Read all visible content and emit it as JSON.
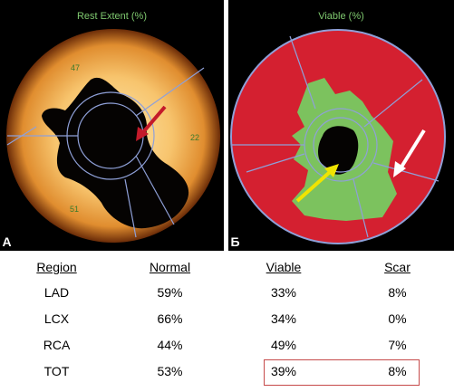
{
  "panel_a": {
    "title": "Rest Extent (%)",
    "letter": "A",
    "segment_labels": {
      "top": "47",
      "right": "22",
      "bottom": "51"
    }
  },
  "panel_b": {
    "title": "Viable (%)",
    "letter": "Б"
  },
  "table": {
    "headers": [
      "Region",
      "Normal",
      "Viable",
      "Scar"
    ],
    "rows": [
      [
        "LAD",
        "59%",
        "33%",
        "8%"
      ],
      [
        "LCX",
        "66%",
        "34%",
        "0%"
      ],
      [
        "RCA",
        "44%",
        "49%",
        "7%"
      ],
      [
        "TOT",
        "53%",
        "39%",
        "8%"
      ]
    ]
  },
  "colors": {
    "panel_a_glow": "#f5b95a",
    "defect": "#000000",
    "scar_red": "#d42030",
    "viable_green": "#7cc25e",
    "segment_lines": "#8fa0d8",
    "highlight_box": "#c64a4a"
  }
}
